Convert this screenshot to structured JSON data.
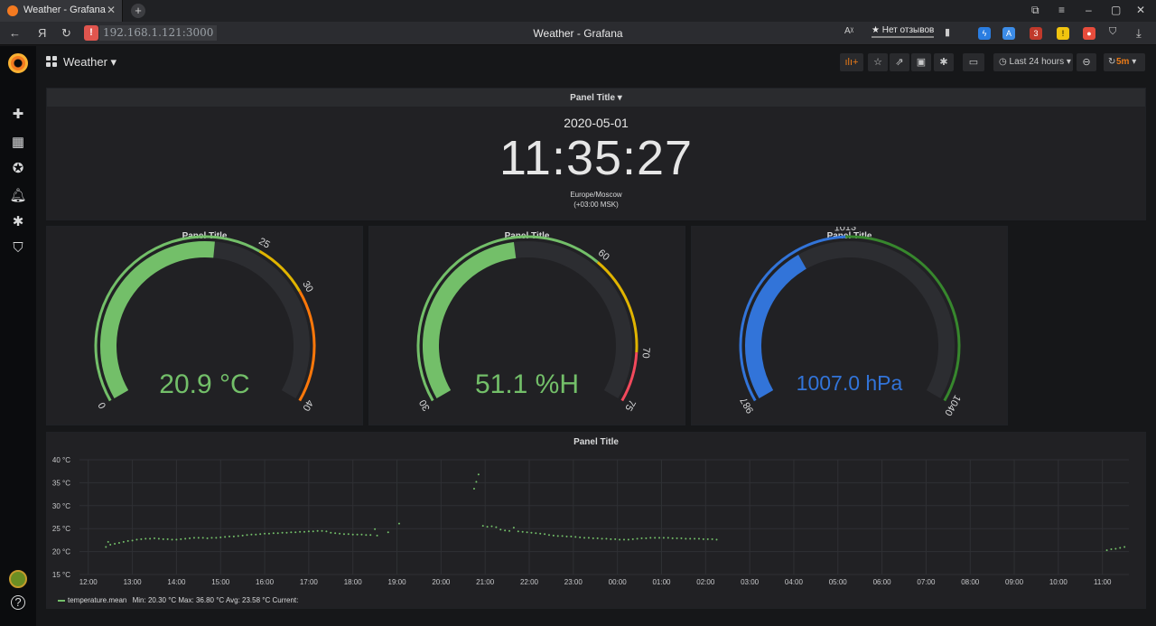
{
  "browser": {
    "tab_title": "Weather - Grafana",
    "url": "192.168.1.121:3000",
    "page_title": "Weather - Grafana",
    "reviews_label": "★ Нет отзывов",
    "ext_badge_count": "3"
  },
  "dashboard": {
    "title": "Weather",
    "time_range": "Last 24 hours",
    "refresh_interval": "5m"
  },
  "clock_panel": {
    "title": "Panel Title",
    "date": "2020-05-01",
    "time": "11:35:27",
    "timezone": "Europe/Moscow",
    "offset": "(+03:00 MSK)"
  },
  "gauges": [
    {
      "title": "Panel Title",
      "value_text": "20.9 °C",
      "value": 20.9,
      "min": 0,
      "max": 40,
      "ticks": [
        "0",
        "25",
        "30",
        "40"
      ],
      "tick_values": [
        0,
        25,
        30,
        40
      ],
      "color": "#73bf69"
    },
    {
      "title": "Panel Title",
      "value_text": "51.1 %H",
      "value": 51.1,
      "min": 30,
      "max": 75,
      "ticks": [
        "30",
        "60",
        "70",
        "75"
      ],
      "tick_values": [
        30,
        60,
        70,
        75
      ],
      "color": "#73bf69"
    },
    {
      "title": "Panel Title",
      "value_text": "1007.0 hPa",
      "value": 1007.0,
      "min": 987,
      "max": 1040,
      "ticks": [
        "987",
        "1013",
        "1040"
      ],
      "tick_values": [
        987,
        1013,
        1040
      ],
      "color": "#3274d9"
    }
  ],
  "graph_panel": {
    "title": "Panel Title",
    "legend": {
      "series": "temperature.mean",
      "stats": "Min: 20.30 °C  Max: 36.80 °C  Avg: 23.58 °C  Current:"
    }
  },
  "colors": {
    "green": "#73bf69",
    "orange": "#ff780a",
    "yellow": "#e0b400",
    "red": "#f2495c",
    "blue": "#3274d9",
    "dark_green": "#37872d",
    "track": "#2c2d31"
  },
  "chart_data": {
    "type": "scatter",
    "title": "Panel Title",
    "xlabel": "",
    "ylabel": "",
    "ylim": [
      15,
      40
    ],
    "y_ticks": [
      "40 °C",
      "35 °C",
      "30 °C",
      "25 °C",
      "20 °C",
      "15 °C"
    ],
    "y_tick_values": [
      40,
      35,
      30,
      25,
      20,
      15
    ],
    "x_ticks": [
      "12:00",
      "13:00",
      "14:00",
      "15:00",
      "16:00",
      "17:00",
      "18:00",
      "19:00",
      "20:00",
      "21:00",
      "22:00",
      "23:00",
      "00:00",
      "01:00",
      "02:00",
      "03:00",
      "04:00",
      "05:00",
      "06:00",
      "07:00",
      "08:00",
      "09:00",
      "10:00",
      "11:00"
    ],
    "x_range_hours": [
      11.8,
      35.6
    ],
    "series": [
      {
        "name": "temperature.mean",
        "x_hours": [
          12.4,
          12.45,
          12.5,
          12.6,
          12.7,
          12.8,
          12.9,
          13.0,
          13.1,
          13.2,
          13.3,
          13.4,
          13.5,
          13.6,
          13.7,
          13.8,
          13.9,
          14.0,
          14.1,
          14.2,
          14.3,
          14.4,
          14.5,
          14.6,
          14.7,
          14.8,
          14.9,
          15.0,
          15.1,
          15.2,
          15.3,
          15.4,
          15.5,
          15.6,
          15.7,
          15.8,
          15.9,
          16.0,
          16.1,
          16.2,
          16.3,
          16.4,
          16.5,
          16.6,
          16.7,
          16.8,
          16.9,
          17.0,
          17.1,
          17.2,
          17.3,
          17.4,
          17.5,
          17.6,
          17.7,
          17.8,
          17.9,
          18.0,
          18.1,
          18.2,
          18.3,
          18.4,
          18.5,
          18.55,
          18.8,
          19.05,
          20.75,
          20.8,
          20.85,
          20.95,
          21.05,
          21.15,
          21.25,
          21.35,
          21.45,
          21.55,
          21.65,
          21.75,
          21.85,
          21.95,
          22.05,
          22.15,
          22.25,
          22.35,
          22.45,
          22.55,
          22.65,
          22.75,
          22.85,
          22.95,
          23.05,
          23.15,
          23.25,
          23.35,
          23.45,
          23.55,
          23.65,
          23.75,
          23.85,
          23.95,
          24.05,
          24.15,
          24.25,
          24.35,
          24.45,
          24.55,
          24.65,
          24.75,
          24.85,
          24.95,
          25.05,
          25.15,
          25.25,
          25.35,
          25.45,
          25.55,
          25.65,
          25.75,
          25.85,
          25.95,
          26.05,
          26.15,
          26.25,
          35.1,
          35.2,
          35.3,
          35.4,
          35.5
        ],
        "values": [
          21.0,
          22.1,
          21.5,
          21.7,
          21.9,
          22.1,
          22.3,
          22.4,
          22.6,
          22.7,
          22.8,
          22.8,
          22.9,
          22.8,
          22.7,
          22.7,
          22.6,
          22.6,
          22.7,
          22.8,
          22.9,
          23.0,
          23.0,
          23.0,
          22.9,
          23.0,
          23.0,
          23.1,
          23.2,
          23.3,
          23.3,
          23.4,
          23.5,
          23.6,
          23.7,
          23.7,
          23.8,
          23.9,
          23.9,
          24.0,
          24.0,
          24.1,
          24.1,
          24.2,
          24.2,
          24.3,
          24.3,
          24.4,
          24.4,
          24.5,
          24.5,
          24.4,
          24.1,
          24.0,
          23.9,
          23.8,
          23.8,
          23.7,
          23.7,
          23.7,
          23.6,
          23.6,
          24.9,
          23.5,
          24.2,
          26.1,
          33.7,
          35.2,
          36.8,
          25.6,
          25.4,
          25.5,
          25.3,
          24.8,
          24.6,
          24.5,
          25.2,
          24.4,
          24.3,
          24.2,
          24.1,
          24.0,
          23.9,
          23.8,
          23.6,
          23.5,
          23.4,
          23.4,
          23.3,
          23.3,
          23.2,
          23.1,
          23.0,
          23.0,
          22.9,
          22.9,
          22.8,
          22.8,
          22.7,
          22.7,
          22.6,
          22.6,
          22.6,
          22.7,
          22.8,
          22.9,
          22.9,
          23.0,
          23.0,
          23.0,
          23.0,
          23.0,
          22.9,
          22.9,
          22.9,
          22.8,
          22.8,
          22.8,
          22.8,
          22.7,
          22.7,
          22.7,
          22.6,
          20.3,
          20.5,
          20.6,
          20.8,
          21.0
        ]
      }
    ],
    "grid": true,
    "legend_position": "bottom-left"
  }
}
